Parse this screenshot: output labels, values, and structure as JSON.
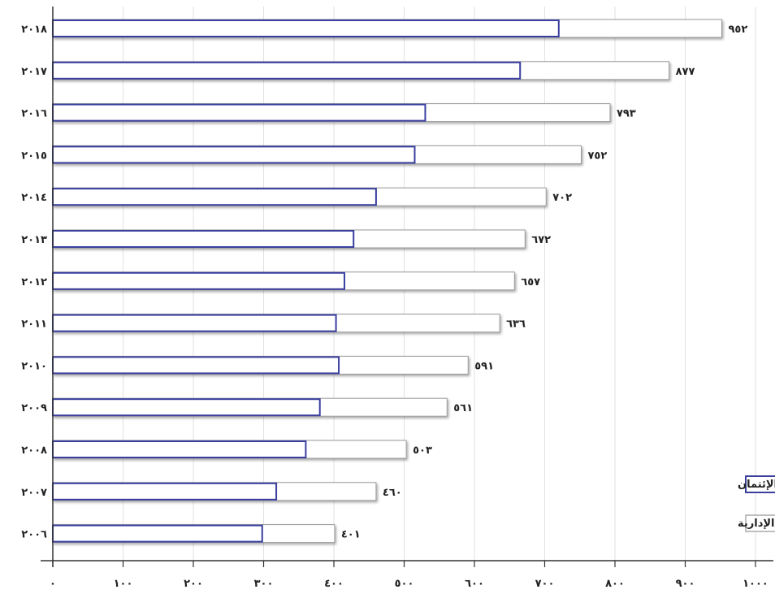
{
  "chart_data": {
    "type": "bar",
    "orientation": "horizontal",
    "overlapping": true,
    "categories": [
      "٢٠١٨",
      "٢٠١٧",
      "٢٠١٦",
      "٢٠١٥",
      "٢٠١٤",
      "٢٠١٣",
      "٢٠١٢",
      "٢٠١١",
      "٢٠١٠",
      "٢٠٠٩",
      "٢٠٠٨",
      "٢٠٠٧",
      "٢٠٠٦"
    ],
    "series": [
      {
        "name": "الوظائف الإدارية",
        "values": [
          952,
          877,
          793,
          752,
          702,
          672,
          657,
          636,
          591,
          561,
          503,
          460,
          401
        ],
        "value_labels": [
          "٩٥٢",
          "٨٧٧",
          "٧٩٣",
          "٧٥٢",
          "٧٠٢",
          "٦٧٢",
          "٦٥٧",
          "٦٣٦",
          "٥٩١",
          "٥٦١",
          "٥٠٣",
          "٤٦٠",
          "٤٠١"
        ],
        "color": "#ffffff"
      },
      {
        "name": "مسئولى الإئتمان",
        "values": [
          720,
          665,
          530,
          515,
          460,
          428,
          415,
          403,
          407,
          380,
          360,
          318,
          298
        ],
        "color": "#3a3f9e"
      }
    ],
    "x_ticks": [
      0,
      100,
      200,
      300,
      400,
      500,
      600,
      700,
      800,
      900,
      1000
    ],
    "x_tick_labels": [
      "٠",
      "١٠٠",
      "٢٠٠",
      "٣٠٠",
      "٤٠٠",
      "٥٠٠",
      "٦٠٠",
      "٧٠٠",
      "٨٠٠",
      "٩٠٠",
      "١٠٠٠"
    ],
    "xlim": [
      0,
      1000
    ],
    "grid": true,
    "legend_position": "bottom-right"
  }
}
